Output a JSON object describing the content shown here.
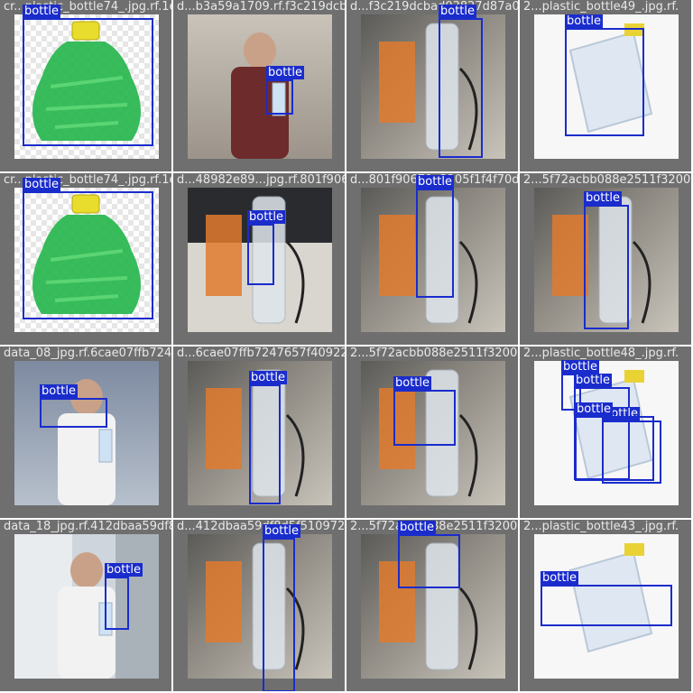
{
  "label_color": "#1a2ccc",
  "tiles": [
    {
      "filename": "cr...plastic_bottle74_.jpg.rf.1e859f1700",
      "scene": "checker",
      "boxes": [
        {
          "label": "bottle"
        }
      ]
    },
    {
      "filename": "d...b3a59a1709.rf.f3c219dcbad0d3827d87a0f25f8",
      "scene": "room",
      "boxes": [
        {
          "label": "bottle"
        }
      ]
    },
    {
      "filename": "d...f3c219dcbad03827d87a0f25f5172acbb088e2ef1b",
      "scene": "desk",
      "boxes": [
        {
          "label": "bottle"
        }
      ]
    },
    {
      "filename": "2...plastic_bottle49_.jpg.rf.",
      "scene": "white",
      "boxes": [
        {
          "label": "bottle"
        }
      ]
    },
    {
      "filename": "cr...plastic_bottle74_.jpg.rf.1e859f1700",
      "scene": "checker",
      "boxes": [
        {
          "label": "bottle"
        }
      ]
    },
    {
      "filename": "d...48982e89...jpg.rf.801f90679e3305f1f4f70d9672acbb088e2511f3",
      "scene": "office",
      "boxes": [
        {
          "label": "bottle"
        }
      ]
    },
    {
      "filename": "d...801f90679e3305f1f4f70d9672acbb088e2511f32007a5572acbb088",
      "scene": "desk",
      "boxes": [
        {
          "label": "bottle"
        }
      ]
    },
    {
      "filename": "2...5f72acbb088e2511f32007a5572acbb088",
      "scene": "desk",
      "boxes": [
        {
          "label": "bottle"
        }
      ]
    },
    {
      "filename": "data_08_jpg.rf.6cae07ffb7247657f409221557f72acbb088e2511f32007a5572acbb088e2ef1b",
      "scene": "wall",
      "boxes": [
        {
          "label": "bottle"
        }
      ]
    },
    {
      "filename": "d...6cae07ffb7247657f409221557f72acbb088e",
      "scene": "desk",
      "boxes": [
        {
          "label": "bottle"
        }
      ]
    },
    {
      "filename": "2...5f72acbb088e2511f32007a5572acbb088e2ef1b",
      "scene": "desk",
      "boxes": [
        {
          "label": "bottle"
        }
      ]
    },
    {
      "filename": "2...plastic_bottle48_.jpg.rf.",
      "scene": "white",
      "boxes": [
        {
          "label": "bottle"
        },
        {
          "label": "bottle"
        },
        {
          "label": "bottle"
        },
        {
          "label": "bottle"
        }
      ]
    },
    {
      "filename": "data_18_jpg.rf.412dbaa59df8d5f510972007a5572acbb088e2511f3",
      "scene": "window",
      "boxes": [
        {
          "label": "bottle"
        }
      ]
    },
    {
      "filename": "d...412dbaa59df8d5f510972007a5572acbb088",
      "scene": "desk",
      "boxes": [
        {
          "label": "bottle"
        }
      ]
    },
    {
      "filename": "2...5f72acbb088e2511f32007a5572acbb088e2ef1b",
      "scene": "desk",
      "boxes": [
        {
          "label": "bottle"
        }
      ]
    },
    {
      "filename": "2...plastic_bottle43_.jpg.rf.",
      "scene": "white",
      "boxes": [
        {
          "label": "bottle"
        }
      ]
    }
  ]
}
